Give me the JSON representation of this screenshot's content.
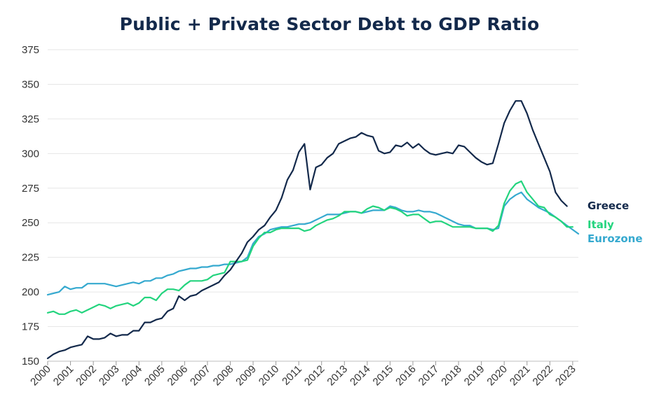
{
  "chart_data": {
    "type": "line",
    "title": "Public + Private Sector Debt to GDP Ratio",
    "xlabel": "",
    "ylabel": "",
    "ylim": [
      150,
      375
    ],
    "yticks": [
      150,
      175,
      200,
      225,
      250,
      275,
      300,
      325,
      350,
      375
    ],
    "xlim": [
      2000.0,
      2023.25
    ],
    "xticks": [
      "2000",
      "2001",
      "2002",
      "2003",
      "2004",
      "2005",
      "2006",
      "2007",
      "2008",
      "2009",
      "2010",
      "2011",
      "2012",
      "2013",
      "2014",
      "2015",
      "2016",
      "2017",
      "2018",
      "2019",
      "2020",
      "2021",
      "2022",
      "2023"
    ],
    "grid": "horizontal",
    "legend_position": "right, at line ends",
    "series": [
      {
        "name": "Greece",
        "color": "#13294b",
        "x0": 2000.0,
        "step": 0.25,
        "values": [
          152,
          155,
          157,
          158,
          160,
          161,
          162,
          168,
          166,
          166,
          167,
          170,
          168,
          169,
          169,
          172,
          172,
          178,
          178,
          180,
          181,
          186,
          188,
          197,
          194,
          197,
          198,
          201,
          203,
          205,
          207,
          212,
          216,
          222,
          228,
          236,
          240,
          245,
          248,
          254,
          259,
          268,
          281,
          288,
          301,
          307,
          274,
          290,
          292,
          297,
          300,
          307,
          309,
          311,
          312,
          315,
          313,
          312,
          302,
          300,
          301,
          306,
          305,
          308,
          304,
          307,
          303,
          300,
          299,
          300,
          301,
          300,
          306,
          305,
          301,
          297,
          294,
          292,
          293,
          307,
          322,
          331,
          338,
          338,
          329,
          317,
          307,
          297,
          287,
          272,
          266,
          262
        ]
      },
      {
        "name": "Italy",
        "color": "#23d47e",
        "x0": 2000.0,
        "step": 0.25,
        "values": [
          185,
          186,
          184,
          184,
          186,
          187,
          185,
          187,
          189,
          191,
          190,
          188,
          190,
          191,
          192,
          190,
          192,
          196,
          196,
          194,
          199,
          202,
          202,
          201,
          205,
          208,
          208,
          208,
          209,
          212,
          213,
          214,
          222,
          222,
          222,
          223,
          233,
          239,
          243,
          243,
          245,
          246,
          246,
          246,
          246,
          244,
          245,
          248,
          250,
          252,
          253,
          255,
          258,
          258,
          258,
          257,
          260,
          262,
          261,
          259,
          261,
          260,
          258,
          255,
          256,
          256,
          253,
          250,
          251,
          251,
          249,
          247,
          247,
          247,
          247,
          246,
          246,
          246,
          244,
          248,
          264,
          273,
          278,
          280,
          272,
          267,
          262,
          261,
          256,
          254,
          251,
          247,
          247
        ]
      },
      {
        "name": "Eurozone",
        "color": "#35a9cf",
        "x0": 2000.0,
        "step": 0.25,
        "values": [
          198,
          199,
          200,
          204,
          202,
          203,
          203,
          206,
          206,
          206,
          206,
          205,
          204,
          205,
          206,
          207,
          206,
          208,
          208,
          210,
          210,
          212,
          213,
          215,
          216,
          217,
          217,
          218,
          218,
          219,
          219,
          220,
          220,
          221,
          222,
          225,
          235,
          240,
          242,
          245,
          246,
          247,
          247,
          248,
          249,
          249,
          250,
          252,
          254,
          256,
          256,
          256,
          257,
          258,
          258,
          257,
          258,
          259,
          259,
          259,
          262,
          261,
          259,
          258,
          258,
          259,
          258,
          258,
          257,
          255,
          253,
          251,
          249,
          248,
          248,
          246,
          246,
          246,
          245,
          246,
          262,
          267,
          270,
          272,
          267,
          264,
          261,
          259,
          257,
          254,
          251,
          248,
          245,
          242
        ]
      }
    ]
  }
}
